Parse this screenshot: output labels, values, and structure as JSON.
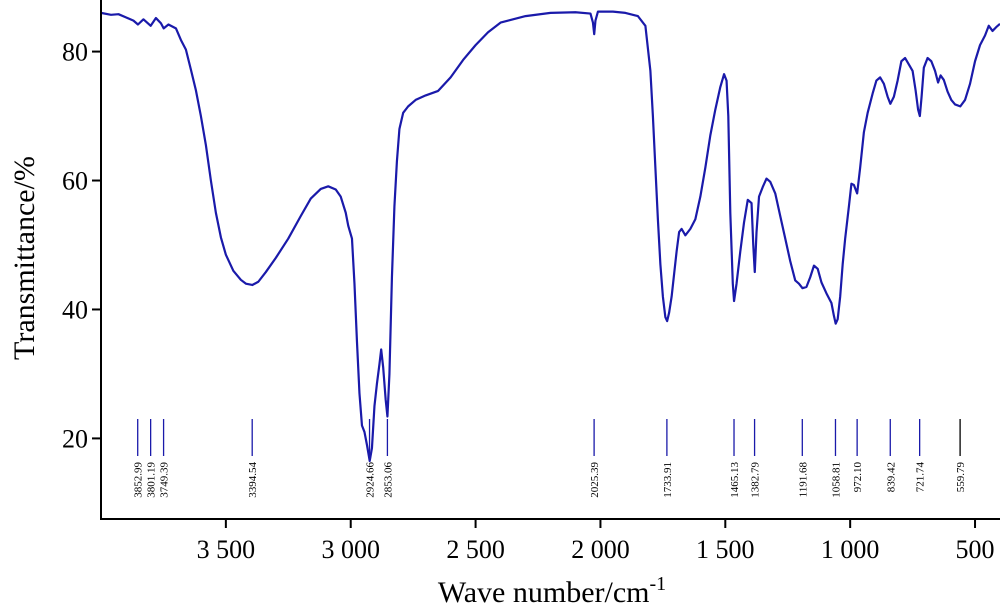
{
  "chart_data": {
    "type": "line",
    "xlabel": "Wave number/cm",
    "xlabel_sup": "-1",
    "ylabel": "Transmittance/%",
    "x_reversed": true,
    "xlim": [
      4000,
      400
    ],
    "ylim": [
      7.5,
      88
    ],
    "grid": false,
    "x_ticks": [
      {
        "value": 3500,
        "label": "3 500"
      },
      {
        "value": 3000,
        "label": "3 000"
      },
      {
        "value": 2500,
        "label": "2 500"
      },
      {
        "value": 2000,
        "label": "2 000"
      },
      {
        "value": 1500,
        "label": "1 500"
      },
      {
        "value": 1000,
        "label": "1 000"
      },
      {
        "value": 500,
        "label": "500"
      }
    ],
    "y_ticks": [
      {
        "value": 20,
        "label": "20"
      },
      {
        "value": 40,
        "label": "40"
      },
      {
        "value": 60,
        "label": "60"
      },
      {
        "value": 80,
        "label": "80"
      }
    ],
    "line_color": "#1a1aaa",
    "peak_color": "#1a1aaa",
    "last_peak_color": "#000000",
    "series": [
      {
        "points": [
          [
            4000,
            86.0
          ],
          [
            3960,
            85.7
          ],
          [
            3930,
            85.8
          ],
          [
            3900,
            85.3
          ],
          [
            3870,
            84.8
          ],
          [
            3852,
            84.2
          ],
          [
            3830,
            85.0
          ],
          [
            3801,
            84.0
          ],
          [
            3780,
            85.2
          ],
          [
            3760,
            84.4
          ],
          [
            3749,
            83.6
          ],
          [
            3730,
            84.2
          ],
          [
            3700,
            83.6
          ],
          [
            3680,
            81.8
          ],
          [
            3660,
            80.3
          ],
          [
            3640,
            77.2
          ],
          [
            3620,
            74.0
          ],
          [
            3600,
            70.0
          ],
          [
            3580,
            65.5
          ],
          [
            3560,
            60.0
          ],
          [
            3540,
            55.0
          ],
          [
            3520,
            51.2
          ],
          [
            3500,
            48.5
          ],
          [
            3470,
            46.0
          ],
          [
            3440,
            44.6
          ],
          [
            3420,
            44.0
          ],
          [
            3394,
            43.8
          ],
          [
            3370,
            44.3
          ],
          [
            3340,
            45.8
          ],
          [
            3300,
            48.0
          ],
          [
            3250,
            51.0
          ],
          [
            3200,
            54.5
          ],
          [
            3160,
            57.2
          ],
          [
            3120,
            58.7
          ],
          [
            3090,
            59.1
          ],
          [
            3060,
            58.6
          ],
          [
            3040,
            57.5
          ],
          [
            3020,
            55.0
          ],
          [
            3010,
            53.0
          ],
          [
            2995,
            51.0
          ],
          [
            2985,
            44.0
          ],
          [
            2975,
            35.0
          ],
          [
            2965,
            27.0
          ],
          [
            2955,
            22.0
          ],
          [
            2945,
            21.0
          ],
          [
            2935,
            19.0
          ],
          [
            2924,
            16.5
          ],
          [
            2915,
            18.5
          ],
          [
            2905,
            25.0
          ],
          [
            2895,
            28.5
          ],
          [
            2885,
            31.5
          ],
          [
            2878,
            33.8
          ],
          [
            2870,
            31.0
          ],
          [
            2860,
            26.0
          ],
          [
            2853,
            23.4
          ],
          [
            2845,
            30.0
          ],
          [
            2835,
            45.0
          ],
          [
            2825,
            56.0
          ],
          [
            2815,
            63.0
          ],
          [
            2805,
            68.0
          ],
          [
            2790,
            70.5
          ],
          [
            2770,
            71.5
          ],
          [
            2740,
            72.5
          ],
          [
            2700,
            73.2
          ],
          [
            2650,
            73.9
          ],
          [
            2600,
            76.0
          ],
          [
            2550,
            78.7
          ],
          [
            2500,
            81.0
          ],
          [
            2450,
            83.0
          ],
          [
            2400,
            84.5
          ],
          [
            2300,
            85.5
          ],
          [
            2200,
            86.0
          ],
          [
            2100,
            86.1
          ],
          [
            2040,
            85.9
          ],
          [
            2030,
            84.5
          ],
          [
            2025,
            82.7
          ],
          [
            2020,
            84.8
          ],
          [
            2010,
            86.2
          ],
          [
            1950,
            86.2
          ],
          [
            1900,
            86.0
          ],
          [
            1850,
            85.5
          ],
          [
            1820,
            84.0
          ],
          [
            1800,
            77.0
          ],
          [
            1790,
            70.0
          ],
          [
            1780,
            62.0
          ],
          [
            1770,
            54.0
          ],
          [
            1760,
            47.0
          ],
          [
            1750,
            42.0
          ],
          [
            1740,
            38.8
          ],
          [
            1733,
            38.2
          ],
          [
            1725,
            39.5
          ],
          [
            1715,
            42.0
          ],
          [
            1705,
            45.5
          ],
          [
            1695,
            49.0
          ],
          [
            1685,
            52.0
          ],
          [
            1675,
            52.5
          ],
          [
            1660,
            51.5
          ],
          [
            1640,
            52.5
          ],
          [
            1620,
            54.0
          ],
          [
            1600,
            57.5
          ],
          [
            1580,
            62.0
          ],
          [
            1560,
            67.0
          ],
          [
            1540,
            71.0
          ],
          [
            1520,
            74.5
          ],
          [
            1505,
            76.5
          ],
          [
            1495,
            75.5
          ],
          [
            1488,
            70.0
          ],
          [
            1480,
            55.0
          ],
          [
            1470,
            44.0
          ],
          [
            1465,
            41.3
          ],
          [
            1455,
            44.0
          ],
          [
            1440,
            49.0
          ],
          [
            1425,
            53.5
          ],
          [
            1410,
            57.0
          ],
          [
            1395,
            56.5
          ],
          [
            1388,
            50.0
          ],
          [
            1382,
            45.8
          ],
          [
            1375,
            52.0
          ],
          [
            1365,
            57.5
          ],
          [
            1350,
            59.0
          ],
          [
            1335,
            60.3
          ],
          [
            1320,
            59.8
          ],
          [
            1300,
            58.0
          ],
          [
            1280,
            54.5
          ],
          [
            1260,
            51.0
          ],
          [
            1240,
            47.5
          ],
          [
            1220,
            44.5
          ],
          [
            1205,
            44.0
          ],
          [
            1191,
            43.3
          ],
          [
            1175,
            43.5
          ],
          [
            1160,
            45.0
          ],
          [
            1145,
            46.8
          ],
          [
            1130,
            46.3
          ],
          [
            1115,
            44.2
          ],
          [
            1095,
            42.5
          ],
          [
            1075,
            41.0
          ],
          [
            1065,
            39.0
          ],
          [
            1058,
            37.8
          ],
          [
            1050,
            38.5
          ],
          [
            1040,
            42.0
          ],
          [
            1030,
            47.0
          ],
          [
            1020,
            51.0
          ],
          [
            1005,
            56.0
          ],
          [
            995,
            59.5
          ],
          [
            985,
            59.3
          ],
          [
            972,
            58.0
          ],
          [
            960,
            62.0
          ],
          [
            945,
            67.5
          ],
          [
            930,
            70.5
          ],
          [
            910,
            73.5
          ],
          [
            895,
            75.5
          ],
          [
            880,
            76.0
          ],
          [
            865,
            75.0
          ],
          [
            850,
            73.0
          ],
          [
            839,
            71.9
          ],
          [
            825,
            73.0
          ],
          [
            810,
            75.5
          ],
          [
            795,
            78.5
          ],
          [
            780,
            79.0
          ],
          [
            765,
            78.0
          ],
          [
            750,
            77.0
          ],
          [
            738,
            74.0
          ],
          [
            728,
            71.0
          ],
          [
            721,
            70.0
          ],
          [
            714,
            73.0
          ],
          [
            705,
            77.5
          ],
          [
            690,
            79.0
          ],
          [
            675,
            78.5
          ],
          [
            660,
            77.0
          ],
          [
            648,
            75.2
          ],
          [
            638,
            76.3
          ],
          [
            625,
            75.6
          ],
          [
            610,
            73.8
          ],
          [
            595,
            72.5
          ],
          [
            580,
            71.8
          ],
          [
            559,
            71.5
          ],
          [
            540,
            72.5
          ],
          [
            520,
            75.0
          ],
          [
            500,
            78.5
          ],
          [
            480,
            81.0
          ],
          [
            460,
            82.5
          ],
          [
            445,
            84.0
          ],
          [
            430,
            83.2
          ],
          [
            415,
            83.8
          ],
          [
            400,
            84.3
          ]
        ]
      }
    ],
    "peaks": [
      {
        "value": 3852.99,
        "label": "3852.99"
      },
      {
        "value": 3801.19,
        "label": "3801.19"
      },
      {
        "value": 3749.39,
        "label": "3749.39"
      },
      {
        "value": 3394.54,
        "label": "3394.54"
      },
      {
        "value": 2924.66,
        "label": "2924.66"
      },
      {
        "value": 2853.06,
        "label": "2853.06"
      },
      {
        "value": 2025.39,
        "label": "2025.39"
      },
      {
        "value": 1733.91,
        "label": "1733.91"
      },
      {
        "value": 1465.13,
        "label": "1465.13"
      },
      {
        "value": 1382.79,
        "label": "1382.79"
      },
      {
        "value": 1191.68,
        "label": "1191.68"
      },
      {
        "value": 1058.81,
        "label": "1058.81"
      },
      {
        "value": 972.1,
        "label": "972.10"
      },
      {
        "value": 839.42,
        "label": "839.42"
      },
      {
        "value": 721.74,
        "label": "721.74"
      },
      {
        "value": 559.79,
        "label": "559.79"
      }
    ]
  }
}
